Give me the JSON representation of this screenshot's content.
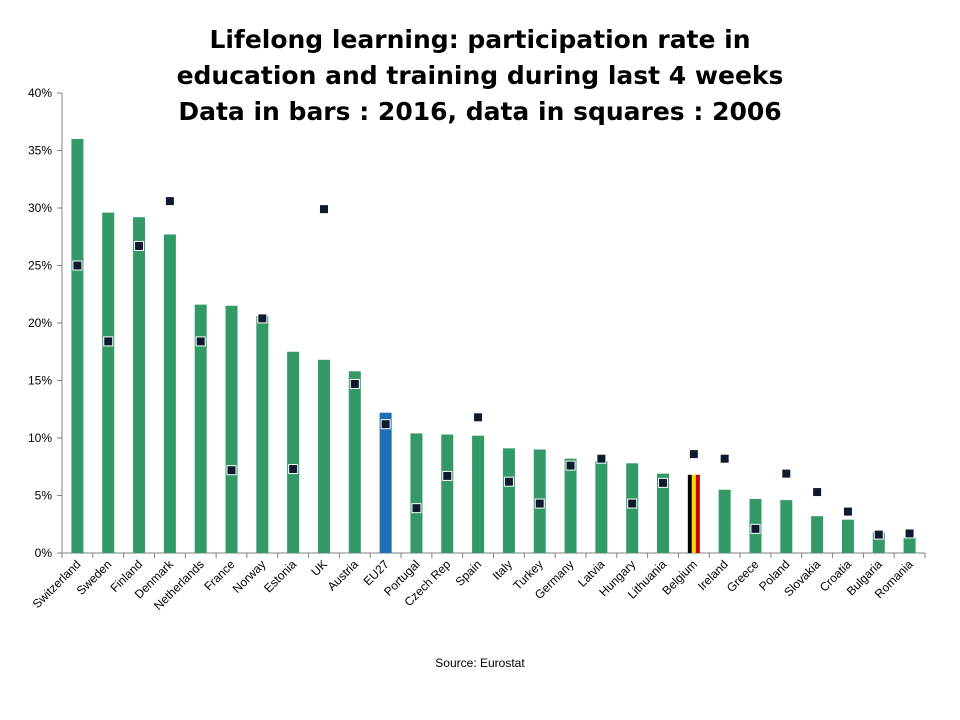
{
  "chart_data": {
    "type": "bar",
    "title_lines": [
      "Lifelong learning: participation rate in",
      "education and training  during last 4 weeks",
      "Data in bars : 2016, data in squares : 2006"
    ],
    "categories": [
      "Switzerland",
      "Sweden",
      "Finland",
      "Denmark",
      "Netherlands",
      "France",
      "Norway",
      "Estonia",
      "UK",
      "Austria",
      "EU27",
      "Portugal",
      "Czech Rep",
      "Spain",
      "Italy",
      "Turkey",
      "Germany",
      "Latvia",
      "Hungary",
      "Lithuania",
      "Belgium",
      "Ireland",
      "Greece",
      "Poland",
      "Slovakia",
      "Croatia",
      "Bulgaria",
      "Romania"
    ],
    "series": [
      {
        "name": "2016",
        "type": "bar",
        "values": [
          36.0,
          29.6,
          29.2,
          27.7,
          21.6,
          21.5,
          20.6,
          17.5,
          16.8,
          15.8,
          12.2,
          10.4,
          10.3,
          10.2,
          9.1,
          9.0,
          8.2,
          8.0,
          7.8,
          6.9,
          6.8,
          5.5,
          4.7,
          4.6,
          3.2,
          2.9,
          1.8,
          1.3
        ]
      },
      {
        "name": "2006",
        "type": "marker",
        "values": [
          25.0,
          18.4,
          26.7,
          30.6,
          18.4,
          7.2,
          20.4,
          7.3,
          29.9,
          14.7,
          11.2,
          3.9,
          6.7,
          11.8,
          6.2,
          4.3,
          7.6,
          8.2,
          4.3,
          6.1,
          8.6,
          8.2,
          2.1,
          6.9,
          5.3,
          3.6,
          1.6,
          1.7
        ]
      }
    ],
    "ylim": [
      0,
      40
    ],
    "yticks": [
      0,
      5,
      10,
      15,
      20,
      25,
      30,
      35,
      40
    ],
    "ytick_suffix": "%",
    "source": "Source: Eurostat",
    "colors": {
      "bar": "#339966",
      "eu27_bar": "#1F6FB6",
      "belgium_flag": [
        "#000000",
        "#FFD700",
        "#CC0000"
      ],
      "marker_fill": "#0F1A2E",
      "marker_stroke": "#ffffff",
      "axis": "#808080"
    }
  }
}
